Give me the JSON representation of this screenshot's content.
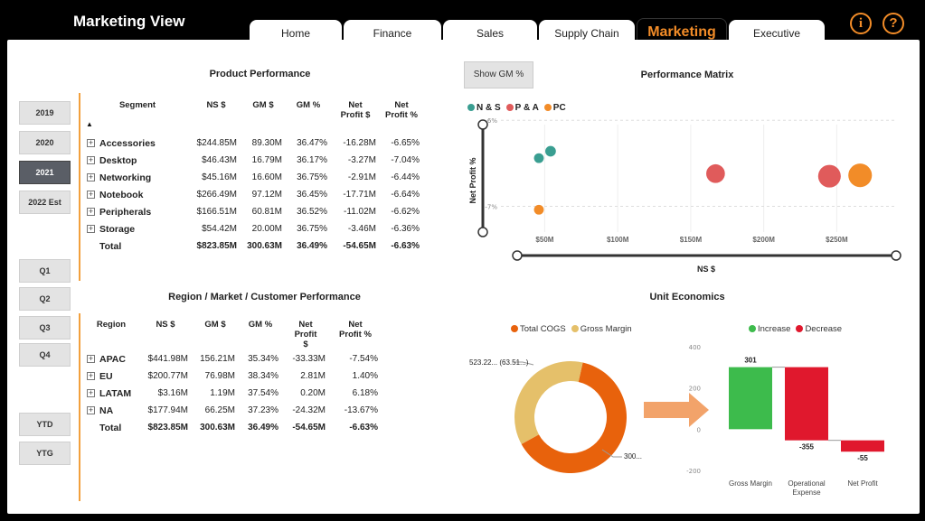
{
  "header": {
    "title": "Marketing View",
    "tabs": [
      "Home",
      "Finance",
      "Sales",
      "Supply Chain",
      "Marketing",
      "Executive"
    ],
    "active_tab": "Marketing",
    "info_icon": "i",
    "help_icon": "?"
  },
  "colors": {
    "accent": "#f28c28",
    "teal": "#3a9e91",
    "red": "#e05b5b",
    "orange": "#f28c28",
    "green": "#3dbb4c",
    "bar_red": "#e0182d"
  },
  "filters": {
    "years": [
      "2019",
      "2020",
      "2021",
      "2022 Est"
    ],
    "active_year": "2021",
    "quarters": [
      "Q1",
      "Q2",
      "Q3",
      "Q4"
    ],
    "periods": [
      "YTD",
      "YTG"
    ]
  },
  "product": {
    "title": "Product Performance",
    "columns": [
      "Segment",
      "NS $",
      "GM $",
      "GM %",
      "Net Profit $",
      "Net Profit %"
    ],
    "sort_icon": "▲",
    "rows": [
      [
        "Accessories",
        "$244.85M",
        "89.30M",
        "36.47%",
        "-16.28M",
        "-6.65%"
      ],
      [
        "Desktop",
        "$46.43M",
        "16.79M",
        "36.17%",
        "-3.27M",
        "-7.04%"
      ],
      [
        "Networking",
        "$45.16M",
        "16.60M",
        "36.75%",
        "-2.91M",
        "-6.44%"
      ],
      [
        "Notebook",
        "$266.49M",
        "97.12M",
        "36.45%",
        "-17.71M",
        "-6.64%"
      ],
      [
        "Peripherals",
        "$166.51M",
        "60.81M",
        "36.52%",
        "-11.02M",
        "-6.62%"
      ],
      [
        "Storage",
        "$54.42M",
        "20.00M",
        "36.75%",
        "-3.46M",
        "-6.36%"
      ]
    ],
    "total": [
      "Total",
      "$823.85M",
      "300.63M",
      "36.49%",
      "-54.65M",
      "-6.63%"
    ]
  },
  "region": {
    "title": "Region / Market / Customer Performance",
    "columns": [
      "Region",
      "NS $",
      "GM $",
      "GM %",
      "Net Profit $",
      "Net Profit %"
    ],
    "rows": [
      [
        "APAC",
        "$441.98M",
        "156.21M",
        "35.34%",
        "-33.33M",
        "-7.54%"
      ],
      [
        "EU",
        "$200.77M",
        "76.98M",
        "38.34%",
        "2.81M",
        "1.40%"
      ],
      [
        "LATAM",
        "$3.16M",
        "1.19M",
        "37.54%",
        "0.20M",
        "6.18%"
      ],
      [
        "NA",
        "$177.94M",
        "66.25M",
        "37.23%",
        "-24.32M",
        "-13.67%"
      ]
    ],
    "total": [
      "Total",
      "$823.85M",
      "300.63M",
      "36.49%",
      "-54.65M",
      "-6.63%"
    ]
  },
  "show_gm_button": "Show GM %",
  "chart_data": [
    {
      "type": "scatter",
      "title": "Performance Matrix",
      "xlabel": "NS $",
      "ylabel": "Net Profit %",
      "x_ticks": [
        "$50M",
        "$100M",
        "$150M",
        "$200M",
        "$250M"
      ],
      "y_ticks": [
        "-6%",
        "-7%"
      ],
      "xlim": [
        20,
        290
      ],
      "ylim": [
        -7.3,
        -6.05
      ],
      "legend": [
        "N & S",
        "P & A",
        "PC"
      ],
      "legend_position": "top-left",
      "series": [
        {
          "name": "N & S",
          "color": "#3a9e91",
          "points": [
            [
              46,
              -6.44
            ],
            [
              54,
              -6.36
            ]
          ]
        },
        {
          "name": "P & A",
          "color": "#e05b5b",
          "points": [
            [
              167,
              -6.62
            ],
            [
              245,
              -6.65
            ]
          ]
        },
        {
          "name": "PC",
          "color": "#f28c28",
          "points": [
            [
              46,
              -7.04
            ],
            [
              266,
              -6.64
            ]
          ]
        }
      ]
    },
    {
      "type": "pie",
      "title": "Unit Economics",
      "legend": [
        "Total COGS",
        "Gross Margin"
      ],
      "slices": [
        {
          "name": "Total COGS",
          "value": 523.22,
          "label": "523.22... (63.51...)",
          "color": "#e8620c"
        },
        {
          "name": "Gross Margin",
          "value": 300.63,
          "label": "300.... (36...)",
          "color": "#e5c06a"
        }
      ]
    },
    {
      "type": "bar",
      "subtype": "waterfall",
      "legend": [
        "Increase",
        "Decrease"
      ],
      "categories": [
        "Gross Margin",
        "Operational Expense",
        "Net Profit"
      ],
      "values": [
        301,
        -355,
        -55
      ],
      "value_labels": [
        "301",
        "-355",
        "-55"
      ],
      "y_ticks": [
        "400",
        "200",
        "0",
        "-200"
      ],
      "ylim": [
        -200,
        400
      ]
    }
  ]
}
